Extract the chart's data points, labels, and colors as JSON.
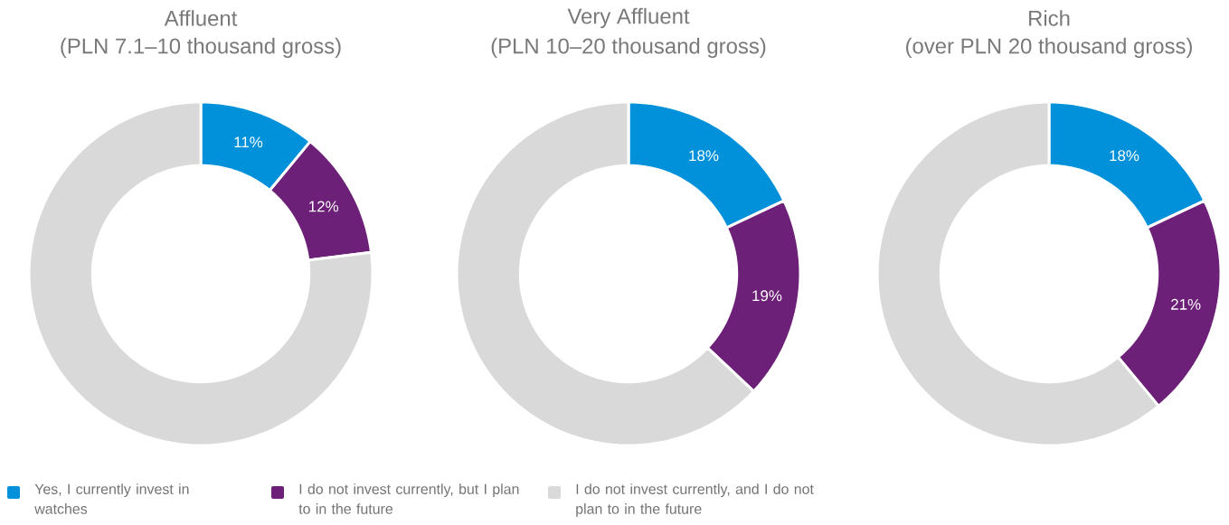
{
  "chart_data": [
    {
      "type": "donut",
      "title": "Affluent",
      "subtitle": "(PLN 7.1–10 thousand gross)",
      "categories": [
        "Yes, I currently invest in watches",
        "I do not invest currently, but I plan to in the future",
        "I do not invest currently, and I do not plan to in the future"
      ],
      "values": [
        11,
        12,
        77
      ],
      "value_labels": [
        "11%",
        "12%",
        null
      ],
      "colors": [
        "#0091da",
        "#6d2077",
        "#d9d9d9"
      ],
      "legend": "bottom"
    },
    {
      "type": "donut",
      "title": "Very Affluent",
      "subtitle": "(PLN 10–20 thousand gross)",
      "values": [
        18,
        19,
        63
      ],
      "value_labels": [
        "18%",
        "19%",
        null
      ],
      "colors": [
        "#0091da",
        "#6d2077",
        "#d9d9d9"
      ]
    },
    {
      "type": "donut",
      "title": "Rich",
      "subtitle": "(over PLN 20 thousand gross)",
      "values": [
        18,
        21,
        61
      ],
      "value_labels": [
        "18%",
        "21%",
        null
      ],
      "colors": [
        "#0091da",
        "#6d2077",
        "#d9d9d9"
      ]
    }
  ]
}
